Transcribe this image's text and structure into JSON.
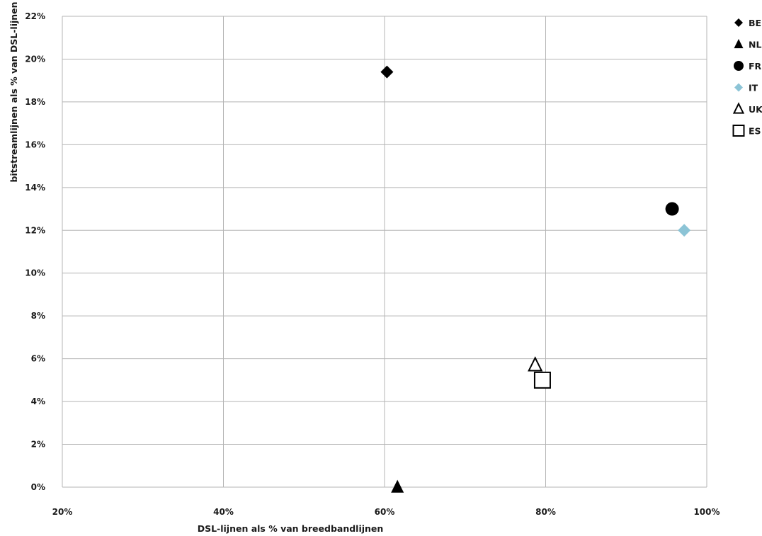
{
  "chart_data": {
    "type": "scatter",
    "xlabel": "DSL-lijnen als % van breedbandlijnen",
    "ylabel": "bitstreamlijnen als % van DSL-lijnen",
    "xlim": [
      20,
      100
    ],
    "ylim": [
      0,
      22
    ],
    "x_ticks": [
      "20%",
      "40%",
      "60%",
      "80%",
      "100%"
    ],
    "y_ticks": [
      "0%",
      "2%",
      "4%",
      "6%",
      "8%",
      "10%",
      "12%",
      "14%",
      "16%",
      "18%",
      "20%",
      "22%"
    ],
    "grid": true,
    "legend_position": "right",
    "series": [
      {
        "name": "BE",
        "marker": "diamond-filled",
        "color": "#000000",
        "x": 60.3,
        "y": 19.4
      },
      {
        "name": "NL",
        "marker": "triangle-filled",
        "color": "#000000",
        "x": 61.6,
        "y": 0.0
      },
      {
        "name": "FR",
        "marker": "circle-filled",
        "color": "#000000",
        "x": 95.7,
        "y": 13.0
      },
      {
        "name": "IT",
        "marker": "diamond-filled",
        "color": "#8cc4d6",
        "x": 97.2,
        "y": 12.0
      },
      {
        "name": "UK",
        "marker": "triangle-open",
        "color": "#000000",
        "x": 78.7,
        "y": 5.7
      },
      {
        "name": "ES",
        "marker": "square-open",
        "color": "#000000",
        "x": 79.6,
        "y": 5.0
      }
    ]
  }
}
